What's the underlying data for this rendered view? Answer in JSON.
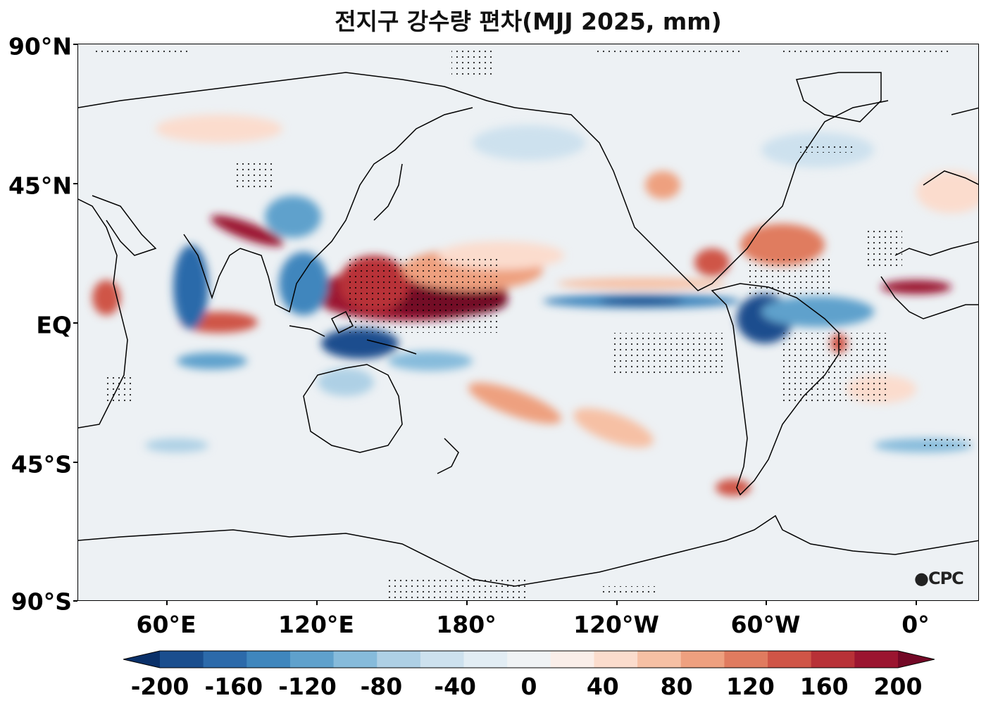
{
  "title": "전지구 강수량 편차(MJJ 2025, mm)",
  "lat_labels": [
    "90°N",
    "45°N",
    "EQ",
    "45°S",
    "90°S"
  ],
  "lon_labels": [
    "60°E",
    "120°E",
    "180°",
    "120°W",
    "60°W",
    "0°"
  ],
  "logo_text": "CPC",
  "colorbar": {
    "tick_labels": [
      "-200",
      "-160",
      "-120",
      "-80",
      "-40",
      "0",
      "40",
      "80",
      "120",
      "160",
      "200"
    ],
    "colors": [
      "#0a3069",
      "#1a4e8e",
      "#2c6aaa",
      "#3f86bd",
      "#5fa1cc",
      "#86bbdb",
      "#aed0e5",
      "#cde1ee",
      "#e2edf4",
      "#f0f3f5",
      "#faeee9",
      "#fbdccd",
      "#f6c0a4",
      "#eea07f",
      "#e07b5f",
      "#cf5547",
      "#b83137",
      "#9b1530",
      "#730826"
    ],
    "extend": "both"
  }
}
